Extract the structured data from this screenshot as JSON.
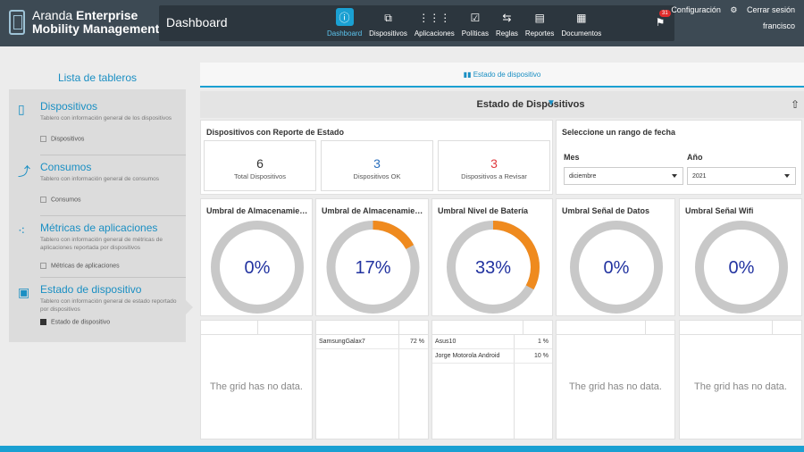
{
  "header": {
    "brand_line1_light": "Aranda",
    "brand_line1_bold": "Enterprise",
    "brand_line2": "Mobility Management",
    "page_title": "Dashboard",
    "nav": [
      {
        "label": "Dashboard",
        "icon": "info-icon",
        "glyph": "ⓘ",
        "active": true
      },
      {
        "label": "Dispositivos",
        "icon": "devices-icon",
        "glyph": "⧉",
        "active": false
      },
      {
        "label": "Aplicaciones",
        "icon": "apps-grid-icon",
        "glyph": "⋮⋮⋮",
        "active": false
      },
      {
        "label": "Políticas",
        "icon": "policies-icon",
        "glyph": "☑",
        "active": false
      },
      {
        "label": "Reglas",
        "icon": "rules-icon",
        "glyph": "⇆",
        "active": false
      },
      {
        "label": "Reportes",
        "icon": "reports-icon",
        "glyph": "▤",
        "active": false
      },
      {
        "label": "Documentos",
        "icon": "documents-icon",
        "glyph": "▦",
        "active": false
      }
    ],
    "notifications_count": "31",
    "config_label": "Configuración",
    "logout_label": "Cerrar sesión",
    "username": "francisco"
  },
  "sidebar": {
    "title": "Lista de tableros",
    "items": [
      {
        "name": "Dispositivos",
        "desc": "Tablero con información general de los dispositivos",
        "sub": "Dispositivos",
        "selected": false,
        "icon": "device-icon",
        "glyph": "▯"
      },
      {
        "name": "Consumos",
        "desc": "Tablero con información general de consumos",
        "sub": "Consumos",
        "selected": false,
        "icon": "line-chart-icon",
        "glyph": "⤴"
      },
      {
        "name": "Métricas de aplicaciones",
        "desc": "Tablero con información general de métricas de aplicaciones reportada por dispositivos",
        "sub": "Métricas de aplicaciones",
        "selected": false,
        "icon": "scatter-chart-icon",
        "glyph": "⁖"
      },
      {
        "name": "Estado de dispositivo",
        "desc": "Tablero con información general de estado reportado por dispositivos",
        "sub": "Estado de dispositivo",
        "selected": true,
        "icon": "device-status-icon",
        "glyph": "▣"
      }
    ]
  },
  "main": {
    "tab_label": "Estado de dispositivo",
    "section_title": "Estado de Dispositivos",
    "report_card": {
      "title": "Dispositivos con Reporte de Estado",
      "kpis": [
        {
          "value": "6",
          "label": "Total Dispositivos",
          "color": "#333333"
        },
        {
          "value": "3",
          "label": "Dispositivos OK",
          "color": "#2a6fbd"
        },
        {
          "value": "3",
          "label": "Dispositivos a Revisar",
          "color": "#e0393e"
        }
      ]
    },
    "date_card": {
      "title": "Seleccione un rango de fecha",
      "month_label": "Mes",
      "month_value": "diciembre",
      "year_label": "Año",
      "year_value": "2021"
    },
    "gauges": [
      {
        "title": "Umbral de Almacenamiento",
        "display": "0%",
        "value": 0
      },
      {
        "title": "Umbral de Almacenamiento",
        "display": "17%",
        "value": 17
      },
      {
        "title": "Umbral Nivel de Batería",
        "display": "33%",
        "value": 33
      },
      {
        "title": "Umbral Señal de Datos",
        "display": "0%",
        "value": 0
      },
      {
        "title": "Umbral Señal Wifi",
        "display": "0%",
        "value": 0
      }
    ],
    "gauge_colors": {
      "track": "#c8c8c8",
      "fill": "#ef8a1e"
    },
    "grids": [
      {
        "empty_text": "The grid has no data.",
        "rows": []
      },
      {
        "empty_text": "",
        "rows": [
          {
            "name": "SamsungGalax7",
            "pct": "72 %"
          }
        ]
      },
      {
        "empty_text": "",
        "rows": [
          {
            "name": "Asus10",
            "pct": "1 %"
          },
          {
            "name": "Jorge Motorola Android",
            "pct": "10 %"
          }
        ]
      },
      {
        "empty_text": "The grid has no data.",
        "rows": []
      },
      {
        "empty_text": "The grid has no data.",
        "rows": []
      }
    ]
  }
}
